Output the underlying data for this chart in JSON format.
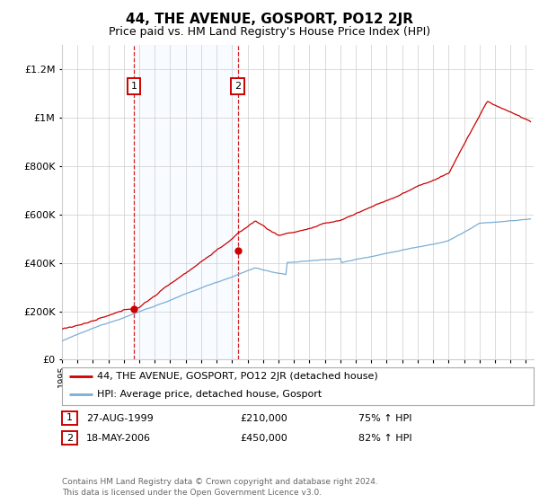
{
  "title": "44, THE AVENUE, GOSPORT, PO12 2JR",
  "subtitle": "Price paid vs. HM Land Registry's House Price Index (HPI)",
  "ytick_values": [
    0,
    200000,
    400000,
    600000,
    800000,
    1000000,
    1200000
  ],
  "ylim": [
    0,
    1300000
  ],
  "xlim_start": 1995.0,
  "xlim_end": 2025.5,
  "sale1_date": 1999.65,
  "sale1_price": 210000,
  "sale2_date": 2006.38,
  "sale2_price": 450000,
  "vline1_x": 1999.65,
  "vline2_x": 2006.38,
  "red_color": "#cc0000",
  "blue_color": "#7aaed6",
  "shade_color": "#ddeeff",
  "legend_entries": [
    "44, THE AVENUE, GOSPORT, PO12 2JR (detached house)",
    "HPI: Average price, detached house, Gosport"
  ],
  "table_rows": [
    [
      "1",
      "27-AUG-1999",
      "£210,000",
      "75% ↑ HPI"
    ],
    [
      "2",
      "18-MAY-2006",
      "£450,000",
      "82% ↑ HPI"
    ]
  ],
  "footer": "Contains HM Land Registry data © Crown copyright and database right 2024.\nThis data is licensed under the Open Government Licence v3.0.",
  "background_color": "#ffffff",
  "grid_color": "#cccccc"
}
